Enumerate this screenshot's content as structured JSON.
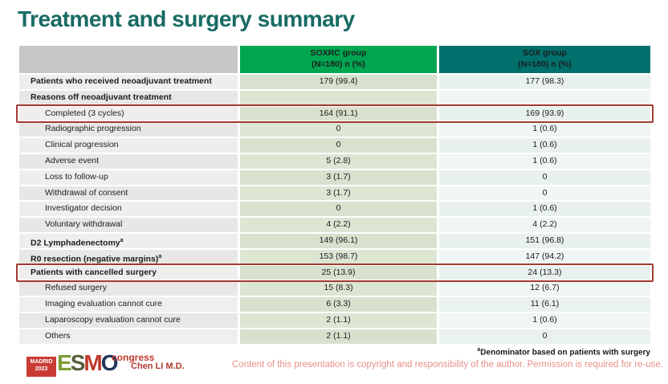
{
  "slide": {
    "title": "Treatment and surgery summary",
    "colors": {
      "title": "#186b64",
      "soxrc_header_bg": "#00a64f",
      "sox_header_bg": "#00706d",
      "highlight_border": "#a23b32",
      "copyright_text": "#e8908a"
    }
  },
  "table": {
    "columns": [
      {
        "line1": "SOXRC group",
        "line2": "(N=180)  n (%)"
      },
      {
        "line1": "SOX group",
        "line2": "(N=180)  n (%)"
      }
    ],
    "rows": [
      {
        "label": "Patients who received neoadjuvant treatment",
        "bold": true,
        "indent": false,
        "highlight": false,
        "soxrc": "179 (99.4)",
        "sox": "177 (98.3)"
      },
      {
        "label": "Reasons off neoadjuvant treatment",
        "bold": true,
        "indent": false,
        "highlight": false,
        "soxrc": "",
        "sox": ""
      },
      {
        "label": "Completed (3 cycles)",
        "bold": false,
        "indent": true,
        "highlight": true,
        "soxrc": "164 (91.1)",
        "sox": "169 (93.9)"
      },
      {
        "label": "Radiographic progression",
        "bold": false,
        "indent": true,
        "highlight": false,
        "soxrc": "0",
        "sox": "1 (0.6)"
      },
      {
        "label": "Clinical progression",
        "bold": false,
        "indent": true,
        "highlight": false,
        "soxrc": "0",
        "sox": "1 (0.6)"
      },
      {
        "label": "Adverse event",
        "bold": false,
        "indent": true,
        "highlight": false,
        "soxrc": "5 (2.8)",
        "sox": "1 (0.6)"
      },
      {
        "label": "Loss to follow-up",
        "bold": false,
        "indent": true,
        "highlight": false,
        "soxrc": "3 (1.7)",
        "sox": "0"
      },
      {
        "label": "Withdrawal of consent",
        "bold": false,
        "indent": true,
        "highlight": false,
        "soxrc": "3 (1.7)",
        "sox": "0"
      },
      {
        "label": "Investigator decision",
        "bold": false,
        "indent": true,
        "highlight": false,
        "soxrc": "0",
        "sox": "1 (0.6)"
      },
      {
        "label": "Voluntary withdrawal",
        "bold": false,
        "indent": true,
        "highlight": false,
        "soxrc": "4 (2.2)",
        "sox": "4 (2.2)"
      },
      {
        "label": "D2 Lymphadenectomy",
        "sup": "a",
        "bold": true,
        "indent": false,
        "highlight": false,
        "soxrc": "149 (96.1)",
        "sox": "151 (96.8)"
      },
      {
        "label": "R0 resection (negative margins)",
        "sup": "a",
        "bold": true,
        "indent": false,
        "highlight": false,
        "soxrc": "153 (98.7)",
        "sox": "147 (94.2)"
      },
      {
        "label": "Patients with cancelled surgery",
        "bold": true,
        "indent": false,
        "highlight": true,
        "soxrc": "25 (13.9)",
        "sox": "24 (13.3)"
      },
      {
        "label": "Refused surgery",
        "bold": false,
        "indent": true,
        "highlight": false,
        "soxrc": "15 (8.3)",
        "sox": "12 (6.7)"
      },
      {
        "label": "Imaging evaluation cannot cure",
        "bold": false,
        "indent": true,
        "highlight": false,
        "soxrc": "6 (3.3)",
        "sox": "11 (6.1)"
      },
      {
        "label": "Laparoscopy evaluation cannot cure",
        "bold": false,
        "indent": true,
        "highlight": false,
        "soxrc": "2 (1.1)",
        "sox": "1 (0.6)"
      },
      {
        "label": "Others",
        "bold": false,
        "indent": true,
        "highlight": false,
        "soxrc": "2 (1.1)",
        "sox": "0"
      }
    ]
  },
  "footer": {
    "footnote_sup": "a",
    "footnote": "Denominator based on patients with surgery",
    "copyright": "Content of this presentation is copyright and responsibility of the author. Permission is required for re-use.",
    "author": "Chen LI M.D.",
    "logo": {
      "madrid": "MADRID",
      "year": "2023",
      "letters": [
        "E",
        "S",
        "M",
        "O"
      ],
      "congress": "congress"
    }
  }
}
